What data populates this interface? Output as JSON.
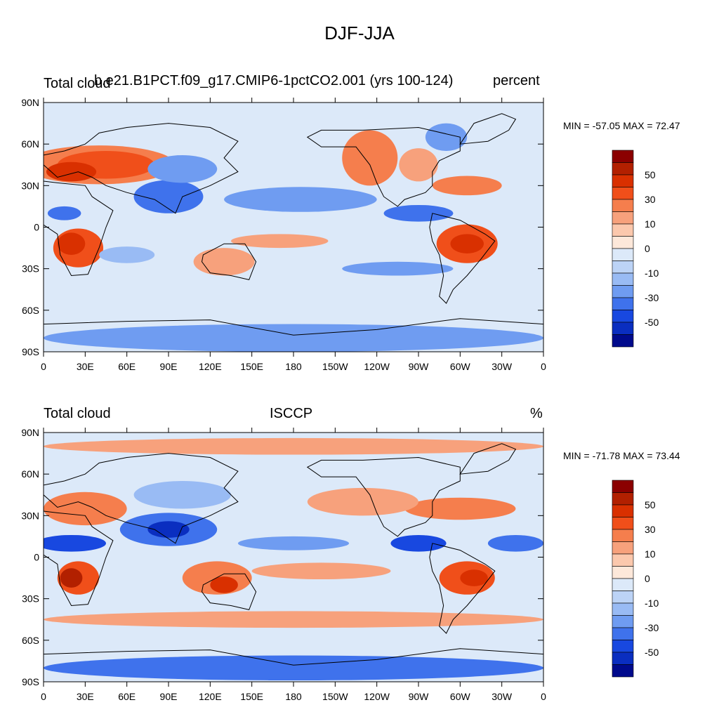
{
  "figure": {
    "title": "DJF-JJA"
  },
  "panels": [
    {
      "left_title": "Total cloud",
      "center_title": "b.e21.B1PCT.f09_g17.CMIP6-1pctCO2.001 (yrs 100-124)",
      "right_title": "percent",
      "stats": "MIN = -57.05 MAX =  72.47",
      "blobs": [
        {
          "lon": 40,
          "lat": 45,
          "rx": 55,
          "ry": 14,
          "level": 3
        },
        {
          "lon": 45,
          "lat": 45,
          "rx": 35,
          "ry": 10,
          "level": 4
        },
        {
          "lon": 20,
          "lat": 40,
          "rx": 18,
          "ry": 7,
          "level": 5
        },
        {
          "lon": 90,
          "lat": 22,
          "rx": 25,
          "ry": 12,
          "level": -4
        },
        {
          "lon": 100,
          "lat": 42,
          "rx": 25,
          "ry": 10,
          "level": -3
        },
        {
          "lon": 15,
          "lat": 10,
          "rx": 12,
          "ry": 5,
          "level": -4
        },
        {
          "lon": 25,
          "lat": -15,
          "rx": 18,
          "ry": 14,
          "level": 4
        },
        {
          "lon": 20,
          "lat": -12,
          "rx": 10,
          "ry": 8,
          "level": 5
        },
        {
          "lon": 130,
          "lat": -25,
          "rx": 22,
          "ry": 10,
          "level": 2
        },
        {
          "lon": 235,
          "lat": 50,
          "rx": 20,
          "ry": 20,
          "level": 3
        },
        {
          "lon": 270,
          "lat": 45,
          "rx": 14,
          "ry": 12,
          "level": 2
        },
        {
          "lon": 305,
          "lat": 30,
          "rx": 25,
          "ry": 7,
          "level": 3
        },
        {
          "lon": 305,
          "lat": -12,
          "rx": 22,
          "ry": 14,
          "level": 4
        },
        {
          "lon": 305,
          "lat": -12,
          "rx": 12,
          "ry": 7,
          "level": 5
        },
        {
          "lon": 185,
          "lat": 20,
          "rx": 55,
          "ry": 9,
          "level": -3
        },
        {
          "lon": 270,
          "lat": 10,
          "rx": 25,
          "ry": 6,
          "level": -4
        },
        {
          "lon": 255,
          "lat": -30,
          "rx": 40,
          "ry": 5,
          "level": -3
        },
        {
          "lon": 180,
          "lat": -80,
          "rx": 180,
          "ry": 10,
          "level": -3
        },
        {
          "lon": 290,
          "lat": 65,
          "rx": 15,
          "ry": 10,
          "level": -3
        },
        {
          "lon": 170,
          "lat": -10,
          "rx": 35,
          "ry": 5,
          "level": 2
        },
        {
          "lon": 60,
          "lat": -20,
          "rx": 20,
          "ry": 6,
          "level": -2
        }
      ]
    },
    {
      "left_title": "Total cloud",
      "center_title": "ISCCP",
      "right_title": "%",
      "stats": "MIN = -71.78 MAX =  73.44",
      "blobs": [
        {
          "lon": 30,
          "lat": 35,
          "rx": 30,
          "ry": 12,
          "level": 3
        },
        {
          "lon": 90,
          "lat": 20,
          "rx": 35,
          "ry": 12,
          "level": -4
        },
        {
          "lon": 90,
          "lat": 20,
          "rx": 15,
          "ry": 6,
          "level": -6
        },
        {
          "lon": 20,
          "lat": 10,
          "rx": 25,
          "ry": 6,
          "level": -5
        },
        {
          "lon": 100,
          "lat": 45,
          "rx": 35,
          "ry": 10,
          "level": -2
        },
        {
          "lon": 25,
          "lat": -15,
          "rx": 15,
          "ry": 12,
          "level": 4
        },
        {
          "lon": 20,
          "lat": -15,
          "rx": 8,
          "ry": 7,
          "level": 6
        },
        {
          "lon": 125,
          "lat": -15,
          "rx": 25,
          "ry": 12,
          "level": 3
        },
        {
          "lon": 130,
          "lat": -20,
          "rx": 10,
          "ry": 6,
          "level": 5
        },
        {
          "lon": 270,
          "lat": 10,
          "rx": 20,
          "ry": 6,
          "level": -5
        },
        {
          "lon": 305,
          "lat": -15,
          "rx": 20,
          "ry": 12,
          "level": 4
        },
        {
          "lon": 310,
          "lat": -15,
          "rx": 10,
          "ry": 6,
          "level": 5
        },
        {
          "lon": 300,
          "lat": 35,
          "rx": 40,
          "ry": 8,
          "level": 3
        },
        {
          "lon": 180,
          "lat": 80,
          "rx": 180,
          "ry": 6,
          "level": 2
        },
        {
          "lon": 180,
          "lat": -80,
          "rx": 180,
          "ry": 9,
          "level": -4
        },
        {
          "lon": 180,
          "lat": -45,
          "rx": 180,
          "ry": 6,
          "level": 2
        },
        {
          "lon": 200,
          "lat": -10,
          "rx": 50,
          "ry": 6,
          "level": 2
        },
        {
          "lon": 230,
          "lat": 40,
          "rx": 40,
          "ry": 10,
          "level": 2
        },
        {
          "lon": 180,
          "lat": 10,
          "rx": 40,
          "ry": 5,
          "level": -3
        },
        {
          "lon": 340,
          "lat": 10,
          "rx": 20,
          "ry": 6,
          "level": -4
        }
      ]
    }
  ],
  "axes": {
    "lat_ticks": [
      "90N",
      "60N",
      "30N",
      "0",
      "30S",
      "60S",
      "90S"
    ],
    "lon_ticks": [
      "0",
      "30E",
      "60E",
      "90E",
      "120E",
      "150E",
      "180",
      "150W",
      "120W",
      "90W",
      "60W",
      "30W",
      "0"
    ]
  },
  "colorbar": {
    "labels": [
      "50",
      "30",
      "10",
      "0",
      "-10",
      "-30",
      "-50"
    ],
    "colors": [
      "#8b0000",
      "#b22000",
      "#d93000",
      "#f04f1a",
      "#f57e4d",
      "#f7a17c",
      "#fbc8ad",
      "#fde8da",
      "#dce9f9",
      "#bcd3f6",
      "#99bbf4",
      "#6f9cf1",
      "#3f72ec",
      "#1848e0",
      "#0a2ec0",
      "#000a8c"
    ]
  },
  "colors": {
    "base_fill": "#dce9f9",
    "coastline": "#000000"
  }
}
